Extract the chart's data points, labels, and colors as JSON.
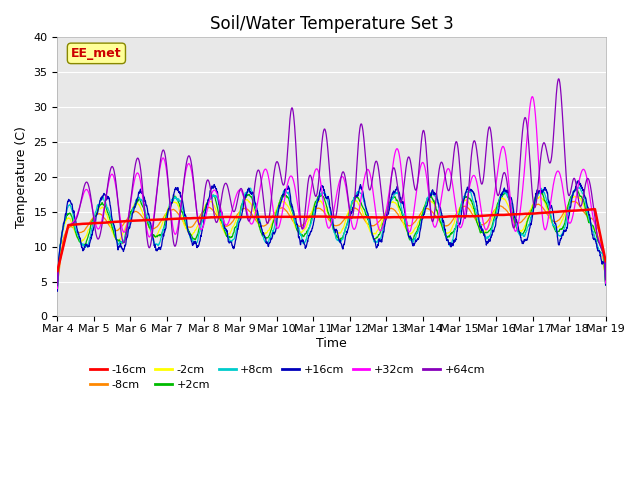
{
  "title": "Soil/Water Temperature Set 3",
  "xlabel": "Time",
  "ylabel": "Temperature (C)",
  "ylim": [
    0,
    40
  ],
  "yticks": [
    0,
    5,
    10,
    15,
    20,
    25,
    30,
    35,
    40
  ],
  "xtick_labels": [
    "Mar 4",
    "Mar 5",
    "Mar 6",
    "Mar 7",
    "Mar 8",
    "Mar 9",
    "Mar 10",
    "Mar 11",
    "Mar 12",
    "Mar 13",
    "Mar 14",
    "Mar 15",
    "Mar 16",
    "Mar 17",
    "Mar 18",
    "Mar 19"
  ],
  "series_colors": {
    "-16cm": "#ff0000",
    "-8cm": "#ff8800",
    "-2cm": "#ffff00",
    "+2cm": "#00bb00",
    "+8cm": "#00cccc",
    "+16cm": "#0000bb",
    "+32cm": "#ff00ff",
    "+64cm": "#8800bb"
  },
  "annotation_text": "EE_met",
  "annotation_bg": "#ffff99",
  "annotation_edge": "#888800",
  "annotation_textcolor": "#cc0000",
  "background_color": "#e8e8e8",
  "title_fontsize": 12,
  "label_fontsize": 9,
  "tick_fontsize": 8
}
